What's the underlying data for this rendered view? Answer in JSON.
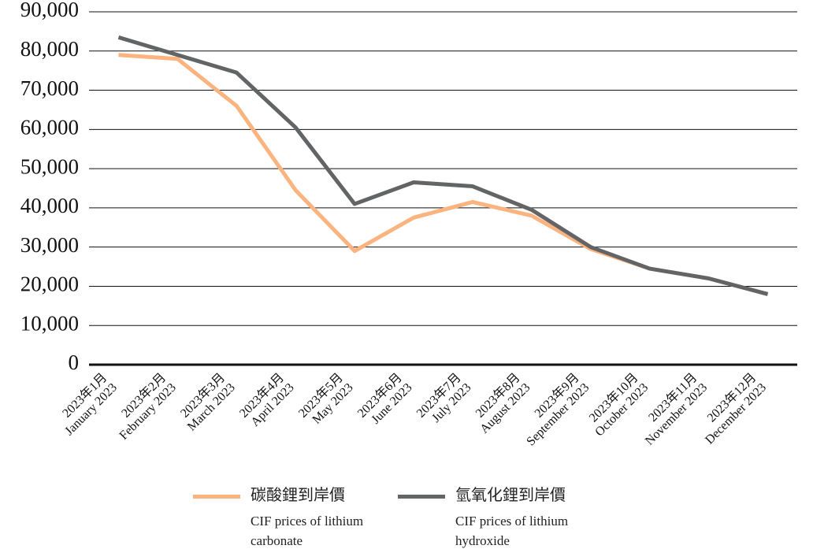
{
  "chart_data": {
    "type": "line",
    "categories": [
      [
        "2023年1月",
        "January 2023"
      ],
      [
        "2023年2月",
        "February 2023"
      ],
      [
        "2023年3月",
        "March 2023"
      ],
      [
        "2023年4月",
        "April 2023"
      ],
      [
        "2023年5月",
        "May 2023"
      ],
      [
        "2023年6月",
        "June 2023"
      ],
      [
        "2023年7月",
        "July 2023"
      ],
      [
        "2023年8月",
        "August 2023"
      ],
      [
        "2023年9月",
        "September 2023"
      ],
      [
        "2023年10月",
        "October 2023"
      ],
      [
        "2023年11月",
        "November 2023"
      ],
      [
        "2023年12月",
        "December 2023"
      ]
    ],
    "series": [
      {
        "name": "碳酸鋰到岸價",
        "name_en": "CIF prices of lithium carbonate",
        "color": "#fbb47f",
        "values": [
          79000,
          78000,
          66000,
          44500,
          29000,
          37500,
          41500,
          38000,
          29500,
          24500,
          22000,
          18000
        ]
      },
      {
        "name": "氫氧化鋰到岸價",
        "name_en": "CIF prices of lithium hydroxide",
        "color": "#636466",
        "values": [
          83500,
          79000,
          74500,
          60500,
          41000,
          46500,
          45500,
          39500,
          30000,
          24500,
          22000,
          18000
        ]
      }
    ],
    "ylim": [
      0,
      90000
    ],
    "yticks": [
      0,
      {
        "value": 10000,
        "label": "10,000"
      },
      {
        "value": 20000,
        "label": "20,000"
      },
      {
        "value": 30000,
        "label": "30,000"
      },
      {
        "value": 40000,
        "label": "40,000"
      },
      {
        "value": 50000,
        "label": "50,000"
      },
      {
        "value": 60000,
        "label": "60,000"
      },
      {
        "value": 70000,
        "label": "70,000"
      },
      {
        "value": 80000,
        "label": "80,000"
      },
      {
        "value": 90000,
        "label": "90,000"
      }
    ],
    "grid": true
  }
}
